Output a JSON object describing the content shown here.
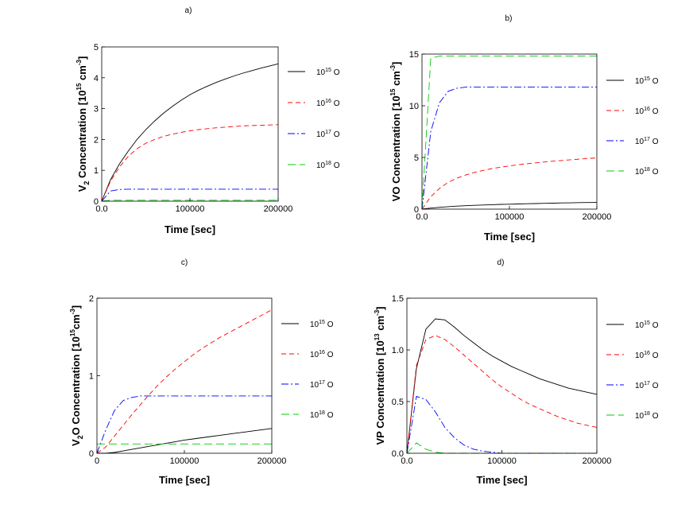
{
  "chart_data": [
    {
      "type": "line",
      "panel": "a)",
      "xlabel": "Time [sec]",
      "ylabel": {
        "pre": "V",
        "sub": "2",
        "mid": " Concentration [10",
        "sup1": "15",
        "mid2": " cm",
        "sup2": "-3",
        "post": "]"
      },
      "xlim": [
        0,
        200000
      ],
      "ylim": [
        0,
        5
      ],
      "xticks": [
        0,
        100000,
        200000
      ],
      "xtick_labels": [
        "0.0",
        "100000",
        "200000"
      ],
      "yticks": [
        0,
        1,
        2,
        3,
        4,
        5
      ],
      "ytick_labels": [
        "0",
        "1",
        "2",
        "3",
        "4",
        "5"
      ],
      "x": [
        0,
        10000,
        20000,
        30000,
        40000,
        50000,
        60000,
        70000,
        80000,
        90000,
        100000,
        110000,
        120000,
        130000,
        140000,
        150000,
        160000,
        170000,
        180000,
        190000,
        200000
      ],
      "series": [
        {
          "name": "10^15 O",
          "values": [
            0,
            0.7,
            1.2,
            1.62,
            2.0,
            2.32,
            2.6,
            2.85,
            3.07,
            3.27,
            3.45,
            3.6,
            3.73,
            3.85,
            3.96,
            4.06,
            4.15,
            4.23,
            4.31,
            4.38,
            4.45
          ]
        },
        {
          "name": "10^16 O",
          "values": [
            0,
            0.65,
            1.1,
            1.45,
            1.7,
            1.88,
            2.0,
            2.1,
            2.17,
            2.23,
            2.28,
            2.32,
            2.35,
            2.38,
            2.4,
            2.42,
            2.44,
            2.45,
            2.46,
            2.47,
            2.48
          ]
        },
        {
          "name": "10^17 O",
          "values": [
            0,
            0.33,
            0.38,
            0.39,
            0.39,
            0.39,
            0.39,
            0.39,
            0.39,
            0.39,
            0.39,
            0.39,
            0.39,
            0.39,
            0.39,
            0.39,
            0.39,
            0.39,
            0.39,
            0.39,
            0.39
          ]
        },
        {
          "name": "10^18 O",
          "values": [
            0,
            0.03,
            0.03,
            0.03,
            0.03,
            0.03,
            0.03,
            0.03,
            0.03,
            0.03,
            0.03,
            0.03,
            0.03,
            0.03,
            0.03,
            0.03,
            0.03,
            0.03,
            0.03,
            0.03,
            0.03
          ]
        }
      ]
    },
    {
      "type": "line",
      "panel": "b)",
      "xlabel": "Time [sec]",
      "ylabel": {
        "pre": "VO",
        "sub": "",
        "mid": " Concentration [10",
        "sup1": "15",
        "mid2": " cm",
        "sup2": "-3",
        "post": "]"
      },
      "xlim": [
        0,
        200000
      ],
      "ylim": [
        0,
        15
      ],
      "xticks": [
        0,
        100000,
        200000
      ],
      "xtick_labels": [
        "0.0",
        "100000",
        "200000"
      ],
      "yticks": [
        0,
        5,
        10,
        15
      ],
      "ytick_labels": [
        "0",
        "5",
        "10",
        "15"
      ],
      "x": [
        0,
        10000,
        20000,
        30000,
        40000,
        50000,
        60000,
        70000,
        80000,
        90000,
        100000,
        110000,
        120000,
        130000,
        140000,
        150000,
        160000,
        170000,
        180000,
        190000,
        200000
      ],
      "series": [
        {
          "name": "10^15 O",
          "values": [
            0,
            0.1,
            0.18,
            0.24,
            0.29,
            0.33,
            0.37,
            0.4,
            0.43,
            0.46,
            0.48,
            0.5,
            0.52,
            0.54,
            0.56,
            0.58,
            0.6,
            0.61,
            0.63,
            0.64,
            0.65
          ]
        },
        {
          "name": "10^16 O",
          "values": [
            0,
            1.2,
            2.0,
            2.6,
            3.0,
            3.3,
            3.55,
            3.75,
            3.92,
            4.06,
            4.18,
            4.29,
            4.39,
            4.48,
            4.56,
            4.64,
            4.71,
            4.78,
            4.84,
            4.9,
            4.95
          ]
        },
        {
          "name": "10^17 O",
          "values": [
            0,
            7.5,
            10.3,
            11.4,
            11.7,
            11.8,
            11.8,
            11.8,
            11.8,
            11.8,
            11.8,
            11.8,
            11.8,
            11.8,
            11.8,
            11.8,
            11.8,
            11.8,
            11.8,
            11.8,
            11.8
          ]
        },
        {
          "name": "10^18 O",
          "values": [
            0,
            14.6,
            14.8,
            14.8,
            14.8,
            14.8,
            14.8,
            14.8,
            14.8,
            14.8,
            14.8,
            14.8,
            14.8,
            14.8,
            14.8,
            14.8,
            14.8,
            14.8,
            14.8,
            14.8,
            14.8
          ]
        }
      ]
    },
    {
      "type": "line",
      "panel": "c)",
      "xlabel": "Time [sec]",
      "ylabel": {
        "pre": "V",
        "sub": "2",
        "mid": "O Concentration [10",
        "sup1": "15",
        "mid2": "cm",
        "sup2": "-3",
        "post": "]"
      },
      "xlim": [
        0,
        200000
      ],
      "ylim": [
        0,
        2
      ],
      "xticks": [
        0,
        100000,
        200000
      ],
      "xtick_labels": [
        "0",
        "100000",
        "200000"
      ],
      "yticks": [
        0,
        1,
        2
      ],
      "ytick_labels": [
        "0",
        "1",
        "2"
      ],
      "x": [
        0,
        10000,
        20000,
        30000,
        40000,
        50000,
        60000,
        70000,
        80000,
        90000,
        100000,
        110000,
        120000,
        130000,
        140000,
        150000,
        160000,
        170000,
        180000,
        190000,
        200000
      ],
      "series": [
        {
          "name": "10^15 O",
          "values": [
            0,
            0.0,
            0.01,
            0.03,
            0.05,
            0.07,
            0.09,
            0.11,
            0.13,
            0.15,
            0.17,
            0.185,
            0.2,
            0.215,
            0.23,
            0.245,
            0.26,
            0.275,
            0.29,
            0.305,
            0.32
          ]
        },
        {
          "name": "10^16 O",
          "values": [
            0,
            0.08,
            0.22,
            0.36,
            0.5,
            0.63,
            0.76,
            0.88,
            0.99,
            1.09,
            1.18,
            1.27,
            1.35,
            1.42,
            1.49,
            1.55,
            1.61,
            1.67,
            1.73,
            1.79,
            1.85
          ]
        },
        {
          "name": "10^17 O",
          "values": [
            0,
            0.3,
            0.55,
            0.68,
            0.72,
            0.74,
            0.74,
            0.74,
            0.74,
            0.74,
            0.74,
            0.74,
            0.74,
            0.74,
            0.74,
            0.74,
            0.74,
            0.74,
            0.74,
            0.74,
            0.74
          ]
        },
        {
          "name": "10^18 O",
          "values": [
            0.12,
            0.12,
            0.12,
            0.12,
            0.12,
            0.12,
            0.12,
            0.12,
            0.12,
            0.12,
            0.12,
            0.12,
            0.12,
            0.12,
            0.12,
            0.12,
            0.12,
            0.12,
            0.12,
            0.12,
            0.12
          ]
        }
      ]
    },
    {
      "type": "line",
      "panel": "d)",
      "xlabel": "Time [sec]",
      "ylabel": {
        "pre": "VP",
        "sub": "",
        "mid": " Concentration [10",
        "sup1": "13",
        "mid2": " cm",
        "sup2": "-3",
        "post": "]"
      },
      "xlim": [
        0,
        200000
      ],
      "ylim": [
        0,
        1.5
      ],
      "xticks": [
        0,
        100000,
        200000
      ],
      "xtick_labels": [
        "0.0",
        "100000",
        "200000"
      ],
      "yticks": [
        0,
        0.5,
        1.0,
        1.5
      ],
      "ytick_labels": [
        "0.0",
        "0.5",
        "1.0",
        "1.5"
      ],
      "x": [
        0,
        10000,
        20000,
        30000,
        40000,
        50000,
        60000,
        70000,
        80000,
        90000,
        100000,
        110000,
        120000,
        130000,
        140000,
        150000,
        160000,
        170000,
        180000,
        190000,
        200000
      ],
      "series": [
        {
          "name": "10^15 O",
          "values": [
            0,
            0.82,
            1.2,
            1.3,
            1.29,
            1.22,
            1.14,
            1.07,
            1.0,
            0.94,
            0.89,
            0.84,
            0.8,
            0.76,
            0.72,
            0.69,
            0.66,
            0.63,
            0.61,
            0.59,
            0.57
          ]
        },
        {
          "name": "10^16 O",
          "values": [
            0,
            0.85,
            1.1,
            1.14,
            1.1,
            1.03,
            0.95,
            0.87,
            0.79,
            0.71,
            0.64,
            0.58,
            0.52,
            0.47,
            0.43,
            0.39,
            0.35,
            0.32,
            0.29,
            0.27,
            0.25
          ]
        },
        {
          "name": "10^17 O",
          "values": [
            0,
            0.55,
            0.52,
            0.4,
            0.25,
            0.15,
            0.08,
            0.04,
            0.02,
            0.01,
            0.0,
            0.0,
            0.0,
            0.0,
            0.0,
            0.0,
            0.0,
            0.0,
            0.0,
            0.0,
            0.0
          ]
        },
        {
          "name": "10^18 O",
          "values": [
            0,
            0.1,
            0.04,
            0.01,
            0.0,
            0.0,
            0.0,
            0.0,
            0.0,
            0.0,
            0.0,
            0.0,
            0.0,
            0.0,
            0.0,
            0.0,
            0.0,
            0.0,
            0.0,
            0.0,
            0.0
          ]
        }
      ]
    }
  ],
  "legend": {
    "entries": [
      {
        "base": "10",
        "exp": "15",
        "suffix": " O",
        "color": "#000000",
        "dash": "none"
      },
      {
        "base": "10",
        "exp": "16",
        "suffix": " O",
        "color": "#ff0000",
        "dash": "dashed"
      },
      {
        "base": "10",
        "exp": "17",
        "suffix": " O",
        "color": "#0000ff",
        "dash": "dash-dot"
      },
      {
        "base": "10",
        "exp": "18",
        "suffix": " O",
        "color": "#00cc00",
        "dash": "long-dash"
      }
    ]
  }
}
